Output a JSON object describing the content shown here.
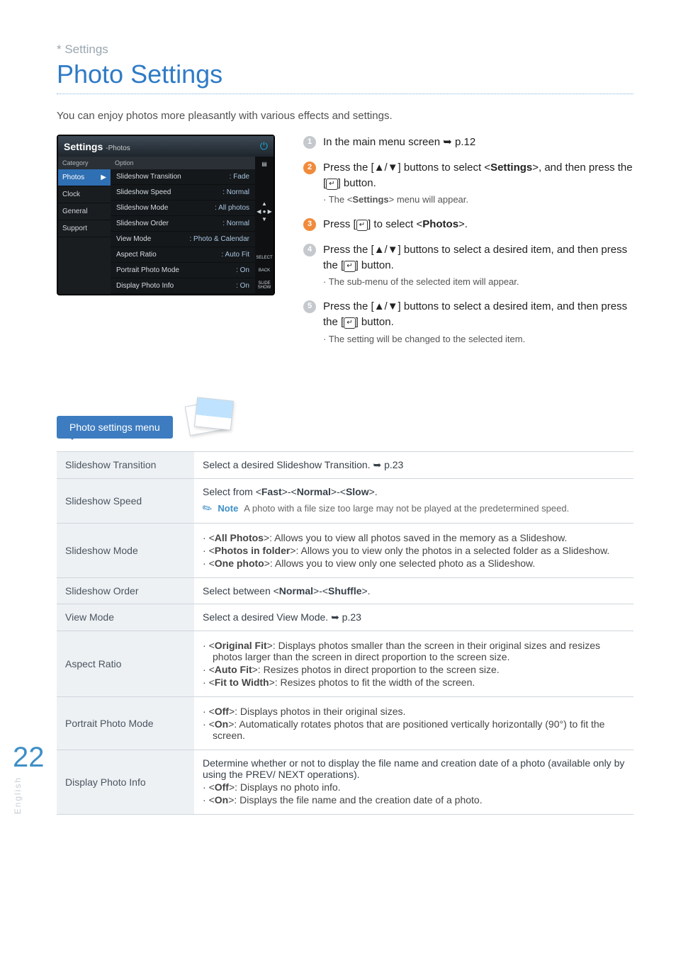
{
  "crumb_prefix": "* ",
  "crumb": "Settings",
  "title": "Photo Settings",
  "intro": "You can enjoy photos more pleasantly with various effects and settings.",
  "ui": {
    "header_title": "Settings",
    "header_sub": "-Photos",
    "cat_header": "Category",
    "opt_header": "Option",
    "categories": [
      "Photos",
      "Clock",
      "General",
      "Support"
    ],
    "selected_category_index": 0,
    "options": [
      {
        "k": "Slideshow Transition",
        "v": ": Fade"
      },
      {
        "k": "Slideshow Speed",
        "v": ": Normal"
      },
      {
        "k": "Slideshow Mode",
        "v": ": All photos"
      },
      {
        "k": "Slideshow Order",
        "v": ": Normal"
      },
      {
        "k": "View Mode",
        "v": ": Photo & Calendar"
      },
      {
        "k": "Aspect Ratio",
        "v": ": Auto Fit"
      },
      {
        "k": "Portrait Photo Mode",
        "v": ": On"
      },
      {
        "k": "Display Photo Info",
        "v": ": On"
      }
    ],
    "side_labels": {
      "select": "SELECT",
      "back": "BACK",
      "slide": "SLIDE\nSHOW"
    }
  },
  "steps": [
    {
      "n": "1",
      "html": "In the main menu screen ➥ p.12"
    },
    {
      "n": "2",
      "html": "Press the [▲/▼] buttons to select <<b>Settings</b>>, and then press the [<span class='enter-ico'>↵</span>] button.",
      "sub": "The <<b>Settings</b>> menu will appear."
    },
    {
      "n": "3",
      "html": "Press [<span class='enter-ico'>↵</span>] to select <<b>Photos</b>>."
    },
    {
      "n": "4",
      "html": "Press the [▲/▼] buttons to select a desired item, and then press the [<span class='enter-ico'>↵</span>] button.",
      "sub": "The sub-menu of the selected item will appear."
    },
    {
      "n": "5",
      "html": "Press the [▲/▼] buttons to select a desired item, and then press the [<span class='enter-ico'>↵</span>] button.",
      "sub": "The setting will be changed to the selected item."
    }
  ],
  "section_tab": "Photo settings menu",
  "table": [
    {
      "k": "Slideshow Transition",
      "v": "Select a desired Slideshow Transition. ➥ p.23"
    },
    {
      "k": "Slideshow Speed",
      "v": "<span class='lead'>Select from &lt;<b>Fast</b>&gt;-&lt;<b>Normal</b>&gt;-&lt;<b>Slow</b>&gt;.</span><span class='note'><span class='note-ico'>✎</span><span class='note-label'>Note</span><span>A photo with a file size too large may not be played at the predetermined speed.</span></span>"
    },
    {
      "k": "Slideshow Mode",
      "v": "<span class='li'>&lt;<b>All Photos</b>&gt;:  Allows you to view all photos saved in the memory as a Slideshow.</span><span class='li'>&lt;<b>Photos in folder</b>&gt;: Allows you to view only the photos in a selected folder as a Slideshow.</span><span class='li'>&lt;<b>One photo</b>&gt;: Allows you to view only one selected photo as a Slideshow.</span>"
    },
    {
      "k": "Slideshow Order",
      "v": "Select between &lt;<b>Normal</b>&gt;-&lt;<b>Shuffle</b>&gt;."
    },
    {
      "k": "View Mode",
      "v": "Select a desired View Mode. ➥ p.23"
    },
    {
      "k": "Aspect Ratio",
      "v": "<span class='li'>&lt;<b>Original Fit</b>&gt;: Displays photos smaller than the screen in their original sizes and resizes photos larger than the screen in direct proportion to the screen size.</span><span class='li'>&lt;<b>Auto Fit</b>&gt;: Resizes photos in direct proportion to the screen size.</span><span class='li'>&lt;<b>Fit to Width</b>&gt;: Resizes photos to fit the width of the screen.</span>"
    },
    {
      "k": "Portrait Photo Mode",
      "v": "<span class='li'>&lt;<b>Off</b>&gt;: Displays photos in their original sizes.</span><span class='li'>&lt;<b>On</b>&gt;: Automatically rotates photos that are positioned vertically horizontally (90°) to fit the screen.</span>"
    },
    {
      "k": "Display Photo Info",
      "v": "Determine whether or not to display the file name and creation date of a photo (available only by using the PREV/ NEXT operations).<br><span class='li'>&lt;<b>Off</b>&gt;: Displays no photo info.</span><span class='li'>&lt;<b>On</b>&gt;: Displays the file name and the creation date of a photo.</span>"
    }
  ],
  "page_number": "22",
  "language": "English"
}
